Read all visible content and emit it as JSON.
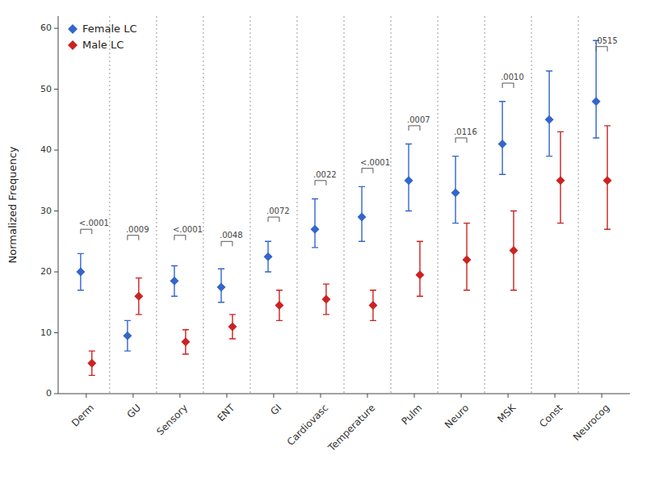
{
  "chart_data": {
    "type": "dot",
    "y_label": "Normalized Frequency",
    "categories": [
      "Derm",
      "GU",
      "Sensory",
      "ENT",
      "GI",
      "Cardiovasc",
      "Temperature",
      "Pulm",
      "Neuro",
      "MSK",
      "Const",
      "Neurocog"
    ],
    "series": [
      {
        "name": "Female LC",
        "color": "#3366cc",
        "marker": "diamond",
        "values": [
          20,
          9.5,
          18.5,
          17.5,
          22.5,
          27,
          29,
          35,
          33,
          41,
          45,
          48
        ],
        "lower": [
          17,
          7,
          16,
          15,
          20,
          24,
          25,
          30,
          28,
          36,
          39,
          42
        ],
        "upper": [
          23,
          12,
          21,
          20.5,
          25,
          32,
          34,
          41,
          39,
          48,
          53,
          58
        ]
      },
      {
        "name": "Male LC",
        "color": "#cc2222",
        "marker": "diamond",
        "values": [
          5,
          16,
          8.5,
          11,
          14.5,
          15.5,
          14.5,
          19.5,
          22,
          23.5,
          35,
          35
        ],
        "lower": [
          3,
          13,
          6.5,
          9,
          12,
          13,
          12,
          16,
          17,
          17,
          28,
          27
        ],
        "upper": [
          7,
          19,
          10.5,
          13,
          17,
          18,
          17,
          25,
          28,
          30,
          43,
          44
        ]
      }
    ],
    "annotations": [
      {
        "text": "<.0001",
        "category": "Derm",
        "y": 27
      },
      {
        "text": ".0009",
        "category": "GU",
        "y": 26
      },
      {
        "text": "<.0001",
        "category": "Sensory",
        "y": 26
      },
      {
        "text": ".0048",
        "category": "ENT",
        "y": 25
      },
      {
        "text": ".0072",
        "category": "GI",
        "y": 29
      },
      {
        "text": ".0022",
        "category": "Cardiovasc",
        "y": 35
      },
      {
        "text": "<.0001",
        "category": "Temperature",
        "y": 37
      },
      {
        "text": ".0007",
        "category": "Pulm",
        "y": 44
      },
      {
        "text": ".0116",
        "category": "Neuro",
        "y": 42
      },
      {
        "text": ".0010",
        "category": "MSK",
        "y": 51
      },
      {
        "text": ".0515",
        "category": "Neurocog",
        "y": 57
      }
    ],
    "ylim": [
      0,
      62
    ],
    "yticks": [
      0,
      10,
      20,
      30,
      40,
      50,
      60
    ],
    "grid": false,
    "legend": "upper left"
  }
}
